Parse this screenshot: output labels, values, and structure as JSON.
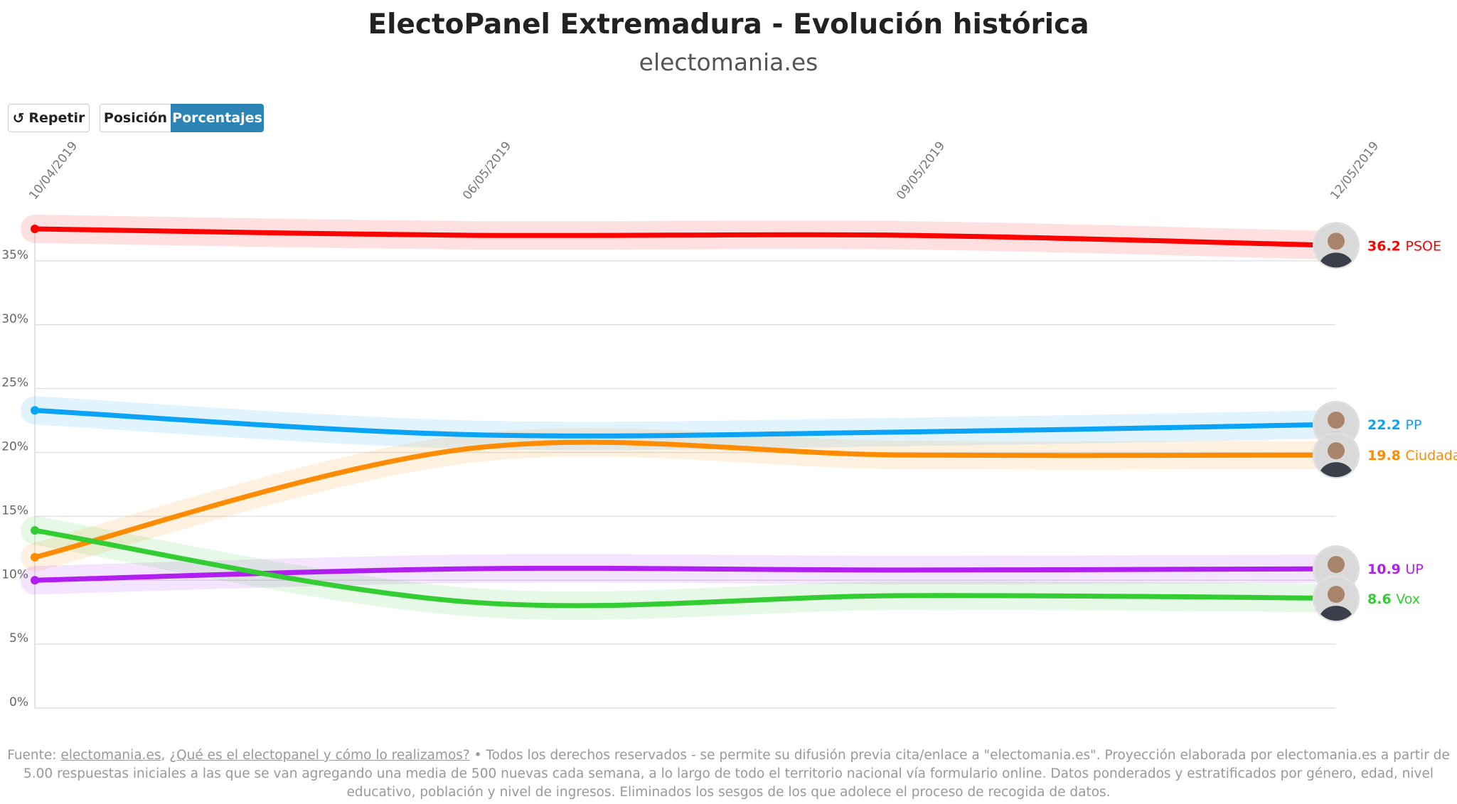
{
  "header": {
    "title": "ElectoPanel Extremadura - Evolución histórica",
    "subtitle": "electomania.es"
  },
  "toolbar": {
    "repeat_label": "Repetir",
    "position_label": "Posición",
    "percentages_label": "Porcentajes",
    "active": "Porcentajes"
  },
  "chart_data": {
    "type": "line",
    "title": "ElectoPanel Extremadura - Evolución histórica",
    "x": [
      "10/04/2019",
      "06/05/2019",
      "09/05/2019",
      "12/05/2019"
    ],
    "ylim": [
      0,
      38
    ],
    "yticks": [
      "0%",
      "5%",
      "10%",
      "15%",
      "20%",
      "25%",
      "30%",
      "35%"
    ],
    "grid": true,
    "series": [
      {
        "name": "PSOE",
        "color": "#ff0000",
        "values": [
          37.5,
          37.0,
          37.0,
          36.2
        ],
        "end_label": "36.2"
      },
      {
        "name": "PP",
        "color": "#0aa3f5",
        "values": [
          23.3,
          21.4,
          21.6,
          22.2
        ],
        "end_label": "22.2"
      },
      {
        "name": "Ciudadanos",
        "color": "#ff8c00",
        "values": [
          11.8,
          20.3,
          19.8,
          19.8
        ],
        "end_label": "19.8",
        "legend_text": "Ciudadan"
      },
      {
        "name": "UP",
        "color": "#b01ef0",
        "values": [
          10.0,
          10.9,
          10.8,
          10.9
        ],
        "end_label": "10.9"
      },
      {
        "name": "Vox",
        "color": "#33cc33",
        "values": [
          13.9,
          8.3,
          8.8,
          8.6
        ],
        "end_label": "8.6"
      }
    ]
  },
  "footer": {
    "prefix": "Fuente: ",
    "link1": "electomania.es",
    "sep": ", ",
    "link2": "¿Qué es el electopanel y cómo lo realizamos?",
    "text": " • Todos los derechos reservados - se permite su difusión previa cita/enlace a \"electomania.es\". Proyección elaborada por electomania.es a partir de 5.00 respuestas iniciales a las que se van agregando una media de 500 nuevas cada semana, a lo largo de todo el territorio nacional vía formulario online. Datos ponderados y estratificados por género, edad, nivel educativo, población y nivel de ingresos. Eliminados los sesgos de los que adolece el proceso de recogida de datos."
  }
}
